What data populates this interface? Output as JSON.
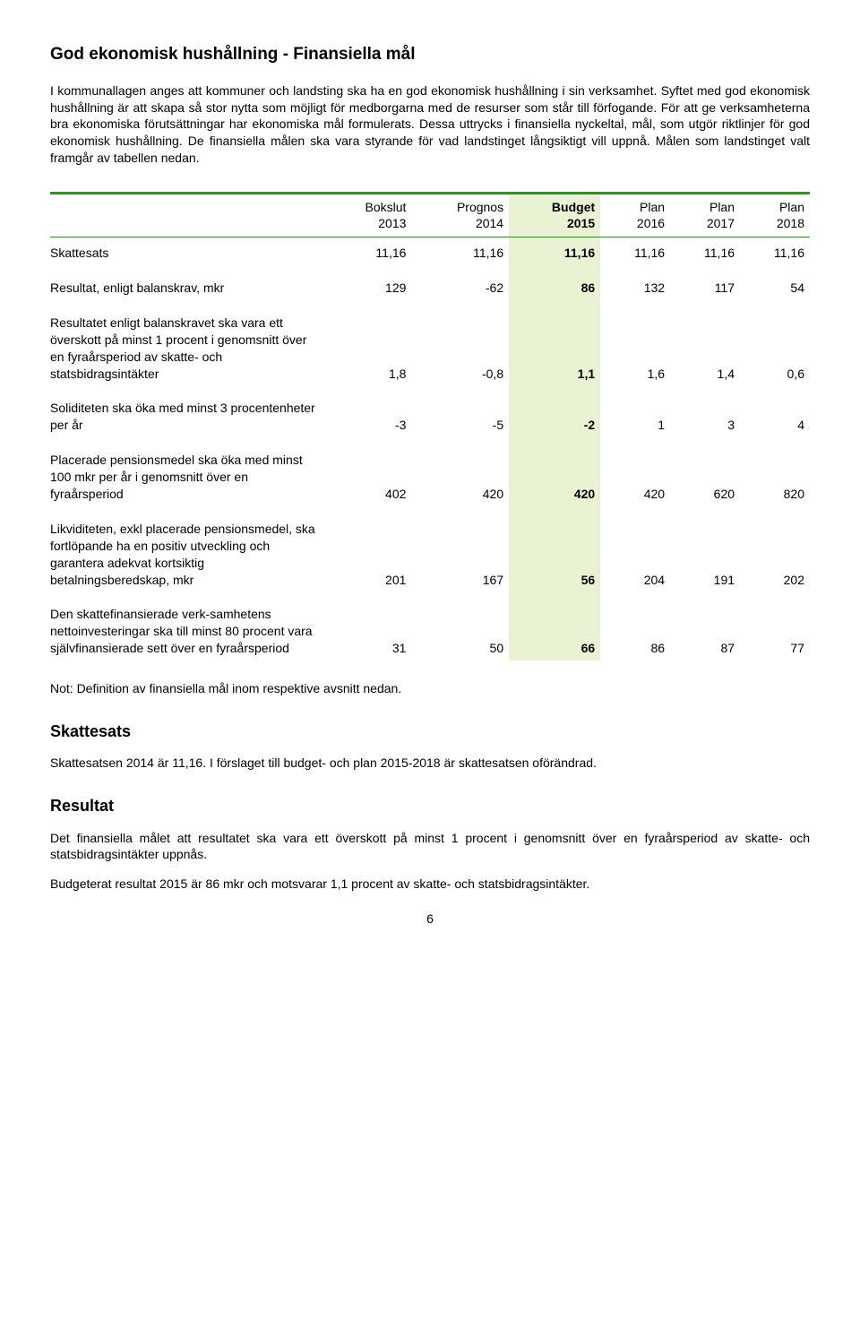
{
  "title": "God ekonomisk hushållning - Finansiella mål",
  "para1": "I kommunallagen anges att kommuner och landsting ska ha en god ekonomisk hushållning i sin verksamhet. Syftet med god ekonomisk hushållning är att skapa så stor nytta som möjligt för medborgarna med de resurser som står till förfogande. För att ge verksamheterna bra ekonomiska förutsättningar har ekonomiska mål formulerats. Dessa uttrycks i finansiella nyckeltal, mål, som utgör riktlinjer för god ekonomisk hushållning. De finansiella målen ska vara styrande för vad landstinget långsiktigt vill uppnå. Målen som landstinget valt framgår av tabellen nedan.",
  "table": {
    "highlight_bg": "#e9f2d2",
    "rule_color": "#3a8a2e",
    "columns": [
      {
        "line1": "",
        "line2": ""
      },
      {
        "line1": "Bokslut",
        "line2": "2013"
      },
      {
        "line1": "Prognos",
        "line2": "2014"
      },
      {
        "line1": "Budget",
        "line2": "2015"
      },
      {
        "line1": "Plan",
        "line2": "2016"
      },
      {
        "line1": "Plan",
        "line2": "2017"
      },
      {
        "line1": "Plan",
        "line2": "2018"
      }
    ],
    "rows": [
      {
        "label": "Skattesats",
        "vals": [
          "11,16",
          "11,16",
          "11,16",
          "11,16",
          "11,16",
          "11,16"
        ]
      },
      {
        "label": "Resultat, enligt balanskrav, mkr",
        "vals": [
          "129",
          "-62",
          "86",
          "132",
          "117",
          "54"
        ]
      },
      {
        "label": "Resultatet enligt balanskravet ska vara ett överskott på minst 1 procent i genomsnitt över en fyraårsperiod av skatte- och statsbidragsintäkter",
        "vals": [
          "1,8",
          "-0,8",
          "1,1",
          "1,6",
          "1,4",
          "0,6"
        ]
      },
      {
        "label": "Soliditeten ska öka med minst 3 procentenheter per år",
        "vals": [
          "-3",
          "-5",
          "-2",
          "1",
          "3",
          "4"
        ]
      },
      {
        "label": "Placerade pensionsmedel ska öka med minst 100 mkr per år i genomsnitt över en fyraårsperiod",
        "vals": [
          "402",
          "420",
          "420",
          "420",
          "620",
          "820"
        ]
      },
      {
        "label": "Likviditeten, exkl placerade pensionsmedel, ska fortlöpande ha en positiv utveckling och garantera adekvat kortsiktig betalningsberedskap, mkr",
        "vals": [
          "201",
          "167",
          "56",
          "204",
          "191",
          "202"
        ]
      },
      {
        "label": "Den skattefinansierade verk-samhetens nettoinvesteringar ska till minst 80 procent vara självfinansierade sett över en fyraårsperiod",
        "vals": [
          "31",
          "50",
          "66",
          "86",
          "87",
          "77"
        ]
      }
    ]
  },
  "note": "Not: Definition av finansiella mål inom respektive avsnitt nedan.",
  "section_tax_title": "Skattesats",
  "section_tax_body": "Skattesatsen 2014 är 11,16. I förslaget till budget- och plan 2015-2018 är skattesatsen oförändrad.",
  "section_result_title": "Resultat",
  "section_result_p1": "Det finansiella målet att resultatet ska vara ett överskott på minst 1 procent i genomsnitt över en fyraårsperiod av skatte- och statsbidragsintäkter uppnås.",
  "section_result_p2": "Budgeterat resultat 2015 är 86 mkr och motsvarar 1,1 procent av skatte- och statsbidragsintäkter.",
  "page_number": "6"
}
